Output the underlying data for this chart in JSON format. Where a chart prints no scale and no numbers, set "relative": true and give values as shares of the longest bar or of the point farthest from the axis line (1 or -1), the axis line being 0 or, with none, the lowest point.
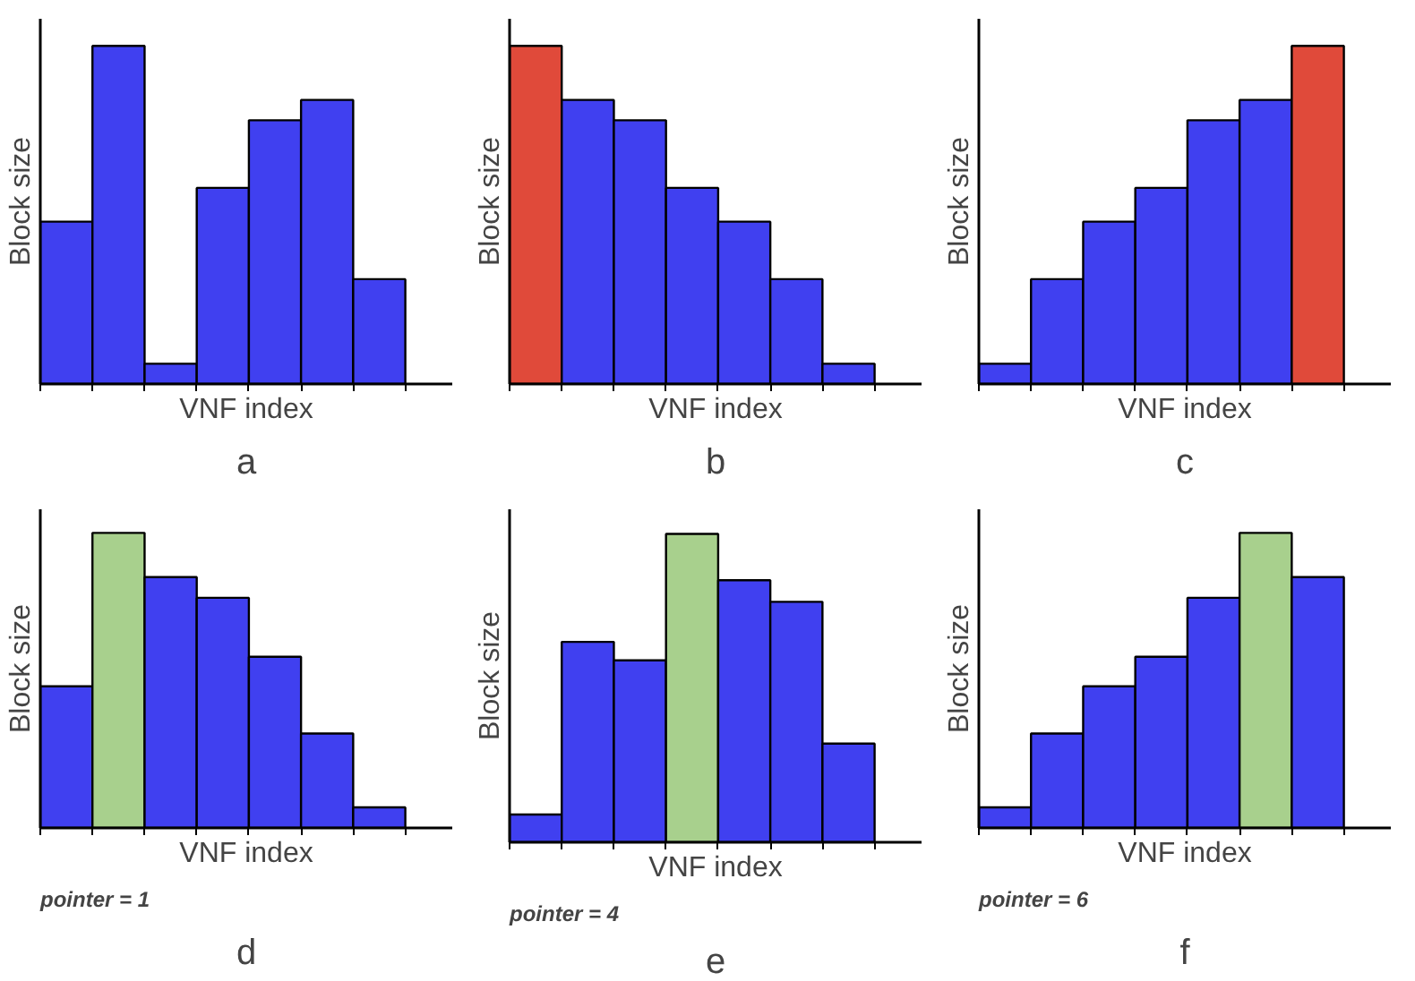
{
  "chart_data": [
    {
      "type": "bar",
      "relative": true,
      "tick_labels": false,
      "xlabel": "VNF index",
      "ylabel": "Block size",
      "categories": [
        null,
        null,
        null,
        null,
        null,
        null,
        null
      ],
      "values": [
        0.48,
        1,
        0.06,
        0.58,
        0.78,
        0.84,
        0.31
      ],
      "colors": [
        "#4040f0",
        "#4040f0",
        "#4040f0",
        "#4040f0",
        "#4040f0",
        "#4040f0",
        "#4040f0"
      ],
      "annotations": [
        "a"
      ]
    },
    {
      "type": "bar",
      "relative": true,
      "tick_labels": false,
      "xlabel": "VNF index",
      "ylabel": "Block size",
      "categories": [
        null,
        null,
        null,
        null,
        null,
        null,
        null
      ],
      "values": [
        1,
        0.84,
        0.78,
        0.58,
        0.48,
        0.31,
        0.06
      ],
      "colors": [
        "#e04a3a",
        "#4040f0",
        "#4040f0",
        "#4040f0",
        "#4040f0",
        "#4040f0",
        "#4040f0"
      ],
      "annotations": [
        "b"
      ]
    },
    {
      "type": "bar",
      "relative": true,
      "tick_labels": false,
      "xlabel": "VNF index",
      "ylabel": "Block size",
      "categories": [
        null,
        null,
        null,
        null,
        null,
        null,
        null
      ],
      "values": [
        0.06,
        0.31,
        0.48,
        0.58,
        0.78,
        0.84,
        1
      ],
      "colors": [
        "#4040f0",
        "#4040f0",
        "#4040f0",
        "#4040f0",
        "#4040f0",
        "#4040f0",
        "#e04a3a"
      ],
      "annotations": [
        "c"
      ]
    },
    {
      "type": "bar",
      "relative": true,
      "tick_labels": false,
      "xlabel": "VNF index",
      "ylabel": "Block size",
      "categories": [
        null,
        null,
        null,
        null,
        null,
        null,
        null
      ],
      "values": [
        0.48,
        1,
        0.85,
        0.78,
        0.58,
        0.32,
        0.07
      ],
      "colors": [
        "#4040f0",
        "#a8d08d",
        "#4040f0",
        "#4040f0",
        "#4040f0",
        "#4040f0",
        "#4040f0"
      ],
      "annotations": [
        "pointer = 1",
        "d"
      ]
    },
    {
      "type": "bar",
      "relative": true,
      "tick_labels": false,
      "xlabel": "VNF index",
      "ylabel": "Block size",
      "categories": [
        null,
        null,
        null,
        null,
        null,
        null,
        null
      ],
      "values": [
        0.09,
        0.65,
        0.59,
        1,
        0.85,
        0.78,
        0.32
      ],
      "colors": [
        "#4040f0",
        "#4040f0",
        "#4040f0",
        "#a8d08d",
        "#4040f0",
        "#4040f0",
        "#4040f0"
      ],
      "annotations": [
        "pointer = 4",
        "e"
      ]
    },
    {
      "type": "bar",
      "relative": true,
      "tick_labels": false,
      "xlabel": "VNF index",
      "ylabel": "Block size",
      "categories": [
        null,
        null,
        null,
        null,
        null,
        null,
        null
      ],
      "values": [
        0.07,
        0.32,
        0.48,
        0.58,
        0.78,
        1,
        0.85
      ],
      "colors": [
        "#4040f0",
        "#4040f0",
        "#4040f0",
        "#4040f0",
        "#4040f0",
        "#a8d08d",
        "#4040f0"
      ],
      "annotations": [
        "pointer = 6",
        "f"
      ]
    }
  ]
}
